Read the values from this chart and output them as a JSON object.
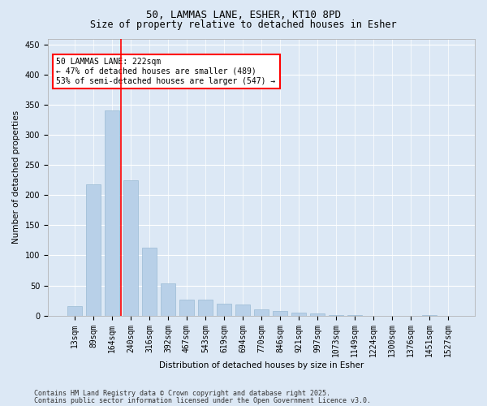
{
  "title_line1": "50, LAMMAS LANE, ESHER, KT10 8PD",
  "title_line2": "Size of property relative to detached houses in Esher",
  "xlabel": "Distribution of detached houses by size in Esher",
  "ylabel": "Number of detached properties",
  "categories": [
    "13sqm",
    "89sqm",
    "164sqm",
    "240sqm",
    "316sqm",
    "392sqm",
    "467sqm",
    "543sqm",
    "619sqm",
    "694sqm",
    "770sqm",
    "846sqm",
    "921sqm",
    "997sqm",
    "1073sqm",
    "1149sqm",
    "1224sqm",
    "1300sqm",
    "1376sqm",
    "1451sqm",
    "1527sqm"
  ],
  "values": [
    15,
    218,
    340,
    224,
    113,
    54,
    27,
    26,
    20,
    18,
    10,
    7,
    5,
    3,
    1,
    1,
    0,
    0,
    0,
    1,
    0
  ],
  "bar_color": "#b8d0e8",
  "bar_edge_color": "#9bbad4",
  "vline_x": 2.5,
  "vline_color": "red",
  "annotation_text": "50 LAMMAS LANE: 222sqm\n← 47% of detached houses are smaller (489)\n53% of semi-detached houses are larger (547) →",
  "annotation_box_color": "white",
  "annotation_box_edge": "red",
  "ylim": [
    0,
    460
  ],
  "yticks": [
    0,
    50,
    100,
    150,
    200,
    250,
    300,
    350,
    400,
    450
  ],
  "bg_color": "#dce8f5",
  "plot_bg_color": "#dce8f5",
  "grid_color": "white",
  "footer_line1": "Contains HM Land Registry data © Crown copyright and database right 2025.",
  "footer_line2": "Contains public sector information licensed under the Open Government Licence v3.0.",
  "title_fontsize": 9,
  "subtitle_fontsize": 8.5,
  "axis_label_fontsize": 7.5,
  "tick_fontsize": 7,
  "annotation_fontsize": 7,
  "footer_fontsize": 6
}
